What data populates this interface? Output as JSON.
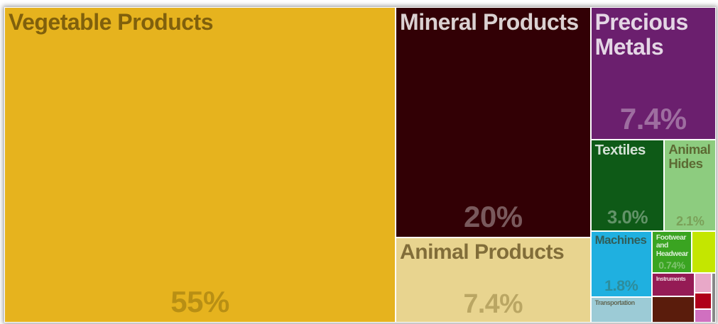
{
  "chart_data": {
    "type": "treemap",
    "categories": [
      "Vegetable Products",
      "Mineral Products",
      "Animal Products",
      "Precious Metals",
      "Textiles",
      "Animal Hides",
      "Machines",
      "Transportation",
      "Footwear and Headwear",
      null,
      "Instruments",
      null,
      null,
      null,
      null,
      null
    ],
    "values": [
      55,
      20,
      7.4,
      7.4,
      3.0,
      2.1,
      1.8,
      0.7,
      0.74,
      0.45,
      0.45,
      0.5,
      0.15,
      0.12,
      0.1,
      0.1
    ],
    "value_labels": [
      "55%",
      "20%",
      "7.4%",
      "7.4%",
      "3.0%",
      "2.1%",
      "1.8%",
      null,
      "0.74%",
      null,
      null,
      null,
      null,
      null,
      null,
      null
    ],
    "colors": [
      "#e6b31e",
      "#320005",
      "#e8d48f",
      "#6b1f6e",
      "#0e5a17",
      "#8dcc7f",
      "#1fb0e0",
      "#9ccbd6",
      "#3aa421",
      "#c4e600",
      "#951b55",
      "#5a1c0c",
      "#e8a8c8",
      "#b0001a",
      "#d070c0",
      "#888888"
    ]
  }
}
